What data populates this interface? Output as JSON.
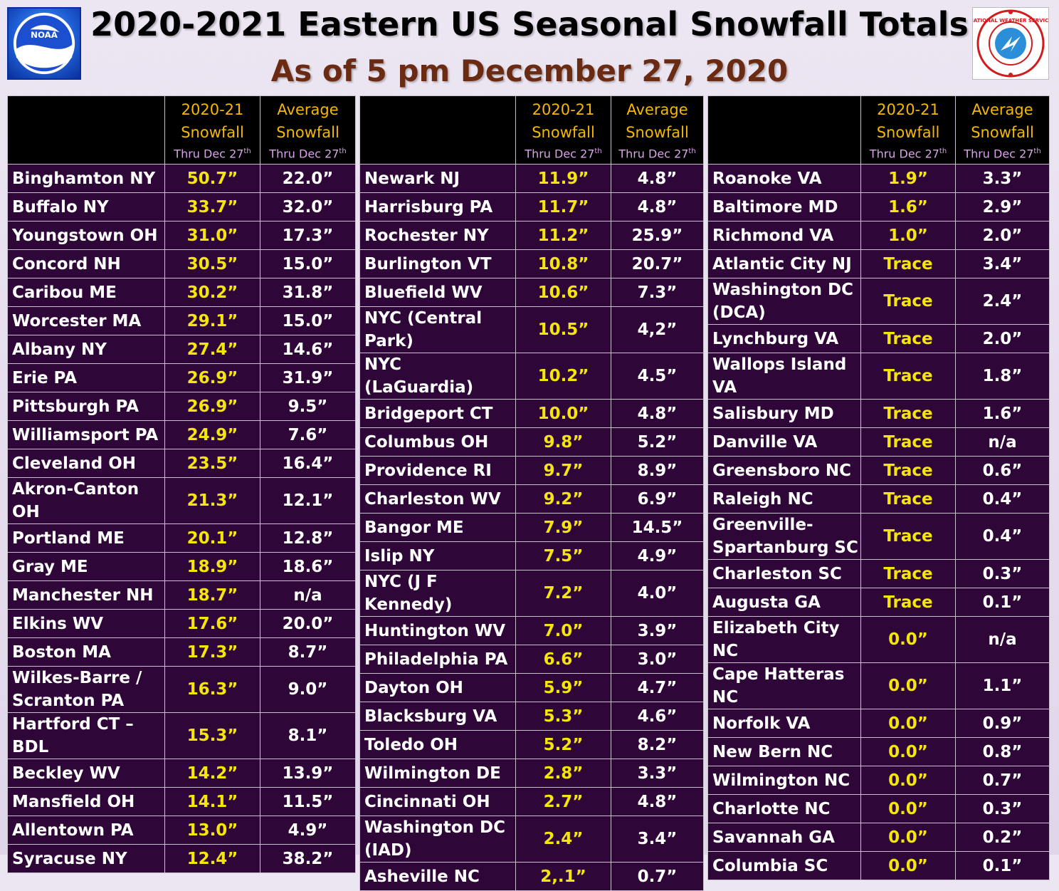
{
  "header": {
    "title": "2020-2021 Eastern US Seasonal Snowfall Totals",
    "subtitle": "As of 5 pm December 27, 2020",
    "left_logo": {
      "text": "NOAA",
      "icon": "noaa-logo"
    },
    "right_logo": {
      "text": "NATIONAL WEATHER SERVICE",
      "icon": "nws-logo"
    }
  },
  "columns": {
    "current_line1": "2020-21",
    "current_line2": "Snowfall",
    "average_line1": "Average",
    "average_line2": "Snowfall",
    "thru": "Thru Dec 27",
    "thru_sup": "th"
  },
  "colors": {
    "header_bg": "#000000",
    "header_text": "#f5b800",
    "subheader_text": "#d9a3e8",
    "row_bg": "#2e0638",
    "current_value": "#f5e60a",
    "text": "#ffffff",
    "subtitle": "#6b2a12"
  },
  "tables": [
    {
      "rows": [
        {
          "city": "Binghamton NY",
          "current": "50.7”",
          "average": "22.0”"
        },
        {
          "city": "Buffalo NY",
          "current": "33.7”",
          "average": "32.0”"
        },
        {
          "city": "Youngstown OH",
          "current": "31.0”",
          "average": "17.3”"
        },
        {
          "city": "Concord NH",
          "current": "30.5”",
          "average": "15.0”"
        },
        {
          "city": "Caribou ME",
          "current": "30.2”",
          "average": "31.8”"
        },
        {
          "city": "Worcester MA",
          "current": "29.1”",
          "average": "15.0”"
        },
        {
          "city": "Albany NY",
          "current": "27.4”",
          "average": "14.6”"
        },
        {
          "city": "Erie PA",
          "current": "26.9”",
          "average": "31.9”"
        },
        {
          "city": "Pittsburgh PA",
          "current": "26.9”",
          "average": "9.5”"
        },
        {
          "city": "Williamsport PA",
          "current": "24.9”",
          "average": "7.6”"
        },
        {
          "city": "Cleveland OH",
          "current": "23.5”",
          "average": "16.4”"
        },
        {
          "city": "Akron-Canton OH",
          "current": "21.3”",
          "average": "12.1”"
        },
        {
          "city": "Portland ME",
          "current": "20.1”",
          "average": "12.8”"
        },
        {
          "city": "Gray ME",
          "current": "18.9”",
          "average": "18.6”"
        },
        {
          "city": "Manchester NH",
          "current": "18.7”",
          "average": "n/a"
        },
        {
          "city": "Elkins WV",
          "current": "17.6”",
          "average": "20.0”"
        },
        {
          "city": "Boston MA",
          "current": "17.3”",
          "average": "8.7”"
        },
        {
          "city": "Wilkes-Barre / Scranton PA",
          "current": "16.3”",
          "average": "9.0”",
          "tall": true
        },
        {
          "city": "Hartford CT – BDL",
          "current": "15.3”",
          "average": "8.1”"
        },
        {
          "city": "Beckley WV",
          "current": "14.2”",
          "average": "13.9”"
        },
        {
          "city": "Mansfield OH",
          "current": "14.1”",
          "average": "11.5”"
        },
        {
          "city": "Allentown PA",
          "current": "13.0”",
          "average": "4.9”"
        },
        {
          "city": "Syracuse NY",
          "current": "12.4”",
          "average": "38.2”"
        }
      ]
    },
    {
      "rows": [
        {
          "city": "Newark NJ",
          "current": "11.9”",
          "average": "4.8”"
        },
        {
          "city": "Harrisburg PA",
          "current": "11.7”",
          "average": "4.8”"
        },
        {
          "city": "Rochester NY",
          "current": "11.2”",
          "average": "25.9”"
        },
        {
          "city": "Burlington VT",
          "current": "10.8”",
          "average": "20.7”"
        },
        {
          "city": "Bluefield WV",
          "current": "10.6”",
          "average": "7.3”"
        },
        {
          "city": "NYC (Central Park)",
          "current": "10.5”",
          "average": "4,2”"
        },
        {
          "city": "NYC (LaGuardia)",
          "current": "10.2”",
          "average": "4.5”"
        },
        {
          "city": "Bridgeport CT",
          "current": "10.0”",
          "average": "4.8”"
        },
        {
          "city": "Columbus OH",
          "current": "9.8”",
          "average": "5.2”"
        },
        {
          "city": "Providence RI",
          "current": "9.7”",
          "average": "8.9”"
        },
        {
          "city": "Charleston WV",
          "current": "9.2”",
          "average": "6.9”"
        },
        {
          "city": "Bangor ME",
          "current": "7.9”",
          "average": "14.5”"
        },
        {
          "city": "Islip NY",
          "current": "7.5”",
          "average": "4.9”"
        },
        {
          "city": "NYC (J F Kennedy)",
          "current": "7.2”",
          "average": "4.0”"
        },
        {
          "city": "Huntington WV",
          "current": "7.0”",
          "average": "3.9”"
        },
        {
          "city": "Philadelphia PA",
          "current": "6.6”",
          "average": "3.0”"
        },
        {
          "city": "Dayton OH",
          "current": "5.9”",
          "average": "4.7”"
        },
        {
          "city": "Blacksburg VA",
          "current": "5.3”",
          "average": "4.6”"
        },
        {
          "city": "Toledo OH",
          "current": "5.2”",
          "average": "8.2”"
        },
        {
          "city": "Wilmington DE",
          "current": "2.8”",
          "average": "3.3”"
        },
        {
          "city": "Cincinnati OH",
          "current": "2.7”",
          "average": "4.8”"
        },
        {
          "city": "Washington DC (IAD)",
          "current": "2.4”",
          "average": "3.4”",
          "tall": true
        },
        {
          "city": "Asheville NC",
          "current": "2,.1”",
          "average": "0.7”"
        }
      ]
    },
    {
      "rows": [
        {
          "city": "Roanoke VA",
          "current": "1.9”",
          "average": "3.3”"
        },
        {
          "city": "Baltimore MD",
          "current": "1.6”",
          "average": "2.9”"
        },
        {
          "city": "Richmond VA",
          "current": "1.0”",
          "average": "2.0”"
        },
        {
          "city": "Atlantic City NJ",
          "current": "Trace",
          "average": "3.4”"
        },
        {
          "city": "Washington DC (DCA)",
          "current": "Trace",
          "average": "2.4”",
          "tall": true
        },
        {
          "city": "Lynchburg VA",
          "current": "Trace",
          "average": "2.0”"
        },
        {
          "city": "Wallops Island VA",
          "current": "Trace",
          "average": "1.8”"
        },
        {
          "city": "Salisbury MD",
          "current": "Trace",
          "average": "1.6”"
        },
        {
          "city": "Danville VA",
          "current": "Trace",
          "average": "n/a"
        },
        {
          "city": "Greensboro NC",
          "current": "Trace",
          "average": "0.6”"
        },
        {
          "city": "Raleigh NC",
          "current": "Trace",
          "average": "0.4”"
        },
        {
          "city": "Greenville-Spartanburg SC",
          "current": "Trace",
          "average": "0.4”",
          "tall": true
        },
        {
          "city": "Charleston SC",
          "current": "Trace",
          "average": "0.3”"
        },
        {
          "city": "Augusta GA",
          "current": "Trace",
          "average": "0.1”"
        },
        {
          "city": "Elizabeth City NC",
          "current": "0.0”",
          "average": "n/a"
        },
        {
          "city": "Cape Hatteras NC",
          "current": "0.0”",
          "average": "1.1”"
        },
        {
          "city": "Norfolk VA",
          "current": "0.0”",
          "average": "0.9”"
        },
        {
          "city": "New Bern NC",
          "current": "0.0”",
          "average": "0.8”"
        },
        {
          "city": "Wilmington NC",
          "current": "0.0”",
          "average": "0.7”"
        },
        {
          "city": "Charlotte NC",
          "current": "0.0”",
          "average": "0.3”"
        },
        {
          "city": "Savannah GA",
          "current": "0.0”",
          "average": "0.2”"
        },
        {
          "city": "Columbia SC",
          "current": "0.0”",
          "average": "0.1”"
        }
      ]
    }
  ]
}
